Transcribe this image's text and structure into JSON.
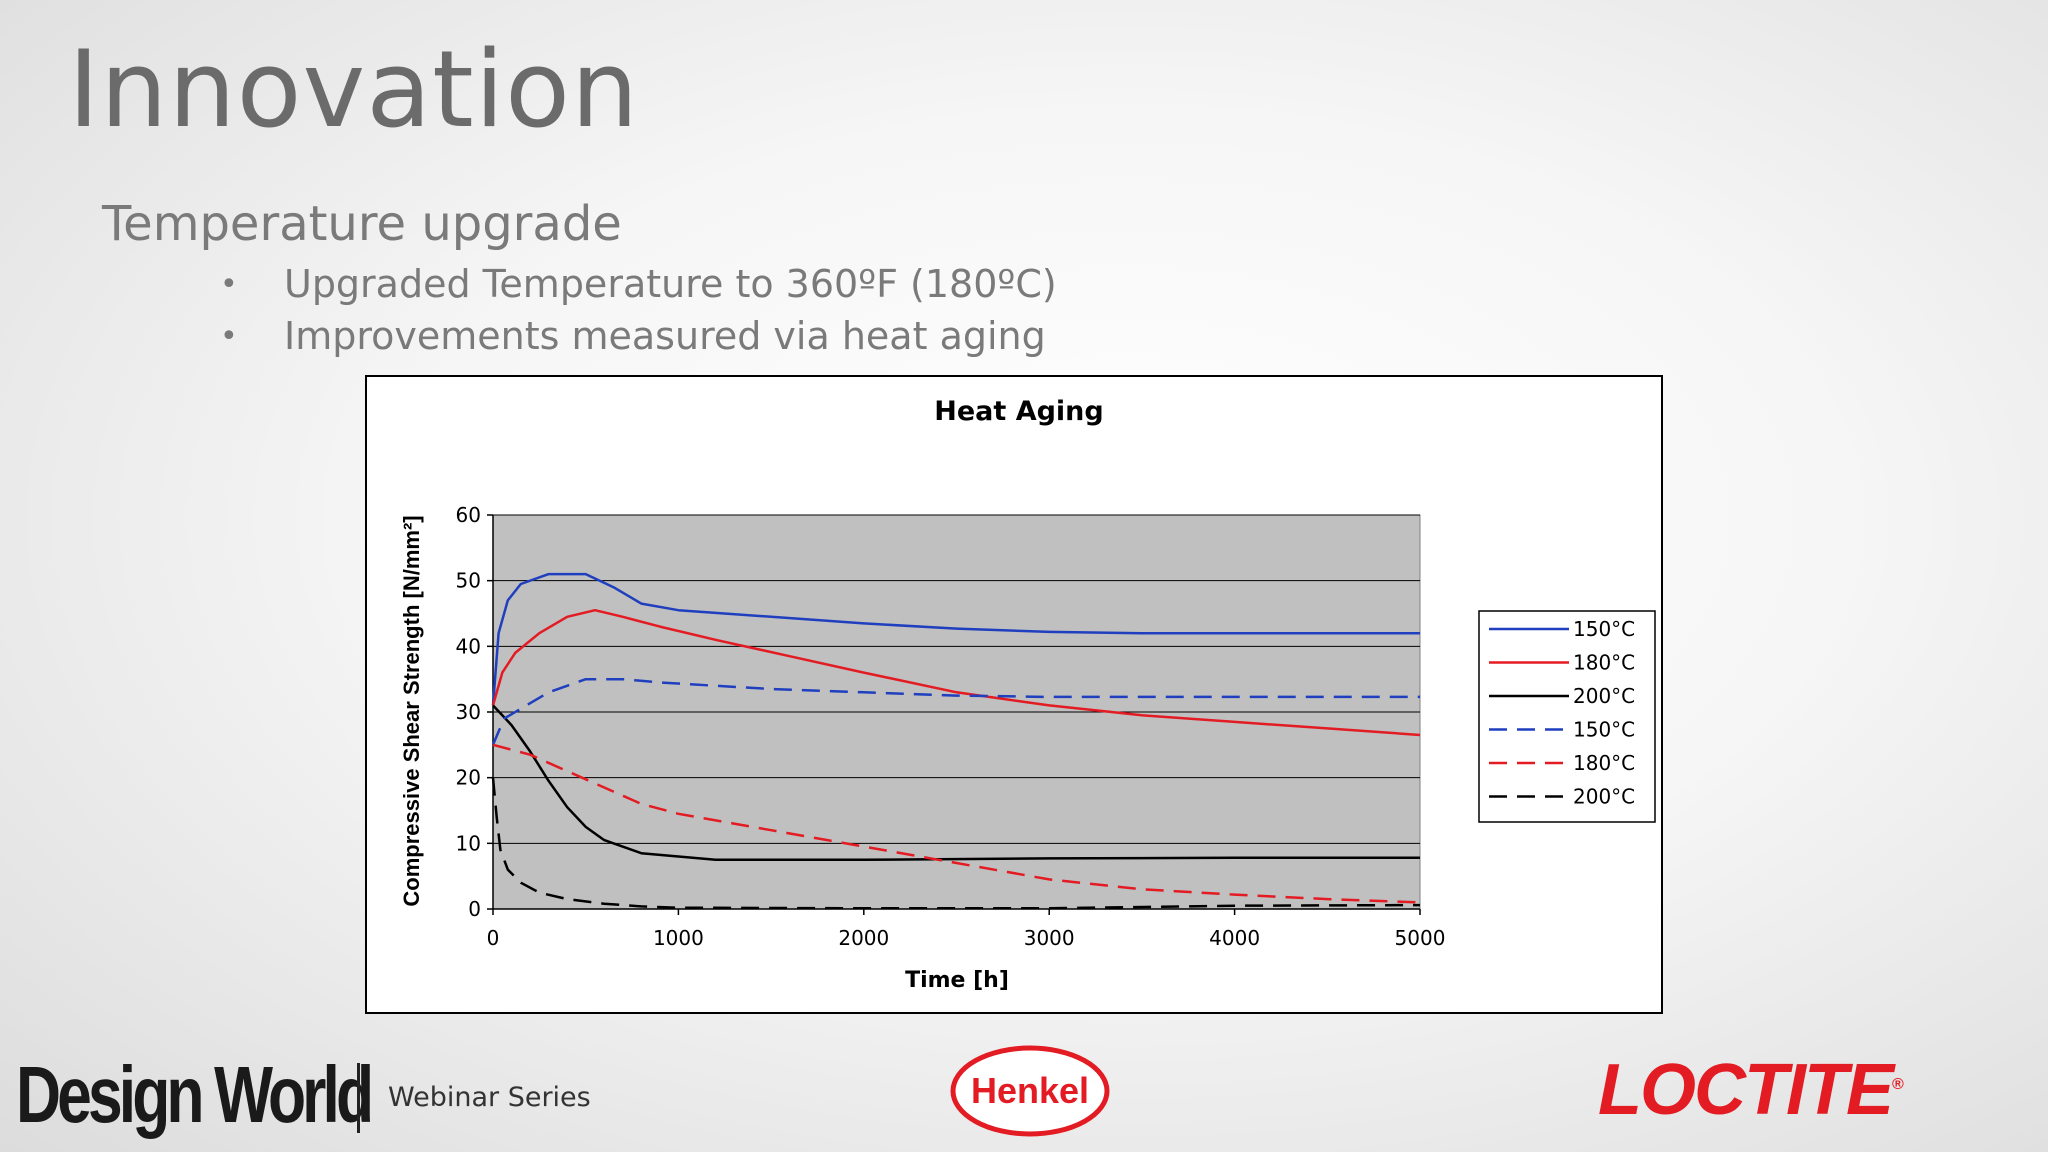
{
  "slide": {
    "title": "Innovation",
    "subtitle": "Temperature upgrade",
    "bullets": [
      "Upgraded Temperature to 360ºF (180ºC)",
      "Improvements measured via heat aging"
    ]
  },
  "footer": {
    "brand": "Design World",
    "series": "Webinar Series",
    "henkel_logo": "Henkel",
    "loctite_logo": "LOCTITE",
    "henkel_color": "#e31b23",
    "loctite_color": "#e31b23"
  },
  "chart_data": {
    "type": "line",
    "title": "Heat Aging",
    "xlabel": "Time [h]",
    "ylabel": "Compressive Shear Strength [N/mm²]",
    "xlim": [
      0,
      5000
    ],
    "ylim": [
      0,
      60
    ],
    "xticks": [
      0,
      1000,
      2000,
      3000,
      4000,
      5000
    ],
    "yticks": [
      0,
      10,
      20,
      30,
      40,
      50,
      60
    ],
    "grid": "horizontal",
    "plot_background": "#c0c0c0",
    "legend_position": "right",
    "series": [
      {
        "name": "150°C",
        "style": "solid",
        "color": "#1f3fbf",
        "points": [
          [
            0,
            31
          ],
          [
            30,
            42
          ],
          [
            80,
            47
          ],
          [
            150,
            49.5
          ],
          [
            300,
            51
          ],
          [
            500,
            51
          ],
          [
            650,
            49
          ],
          [
            800,
            46.5
          ],
          [
            1000,
            45.5
          ],
          [
            1500,
            44.5
          ],
          [
            2000,
            43.5
          ],
          [
            2500,
            42.7
          ],
          [
            3000,
            42.2
          ],
          [
            3500,
            42
          ],
          [
            4000,
            42
          ],
          [
            4500,
            42
          ],
          [
            5000,
            42
          ]
        ]
      },
      {
        "name": "180°C",
        "style": "solid",
        "color": "#e31b23",
        "points": [
          [
            0,
            31
          ],
          [
            50,
            36
          ],
          [
            120,
            39
          ],
          [
            250,
            42
          ],
          [
            400,
            44.5
          ],
          [
            550,
            45.5
          ],
          [
            700,
            44.5
          ],
          [
            900,
            43
          ],
          [
            1200,
            41
          ],
          [
            1600,
            38.5
          ],
          [
            2000,
            36
          ],
          [
            2500,
            33
          ],
          [
            3000,
            31
          ],
          [
            3500,
            29.5
          ],
          [
            4000,
            28.5
          ],
          [
            4500,
            27.5
          ],
          [
            5000,
            26.5
          ]
        ]
      },
      {
        "name": "200°C",
        "style": "solid",
        "color": "#000000",
        "points": [
          [
            0,
            31
          ],
          [
            100,
            28
          ],
          [
            200,
            24
          ],
          [
            300,
            19.5
          ],
          [
            400,
            15.5
          ],
          [
            500,
            12.5
          ],
          [
            600,
            10.5
          ],
          [
            800,
            8.5
          ],
          [
            1000,
            8
          ],
          [
            1200,
            7.5
          ],
          [
            2000,
            7.5
          ],
          [
            3000,
            7.7
          ],
          [
            4000,
            7.8
          ],
          [
            5000,
            7.8
          ]
        ]
      },
      {
        "name": "150°C",
        "style": "dashed",
        "color": "#1f3fbf",
        "points": [
          [
            0,
            25
          ],
          [
            60,
            29
          ],
          [
            150,
            30.5
          ],
          [
            300,
            33
          ],
          [
            500,
            35
          ],
          [
            700,
            35
          ],
          [
            900,
            34.5
          ],
          [
            1500,
            33.5
          ],
          [
            2000,
            33
          ],
          [
            2500,
            32.5
          ],
          [
            3000,
            32.3
          ],
          [
            4000,
            32.3
          ],
          [
            5000,
            32.3
          ]
        ]
      },
      {
        "name": "180°C",
        "style": "dashed",
        "color": "#e31b23",
        "points": [
          [
            0,
            25
          ],
          [
            200,
            23.5
          ],
          [
            400,
            21
          ],
          [
            600,
            18.5
          ],
          [
            800,
            16
          ],
          [
            1000,
            14.5
          ],
          [
            1500,
            12
          ],
          [
            2000,
            9.5
          ],
          [
            2500,
            7
          ],
          [
            3000,
            4.5
          ],
          [
            3500,
            3
          ],
          [
            4000,
            2.2
          ],
          [
            4500,
            1.5
          ],
          [
            5000,
            1
          ]
        ]
      },
      {
        "name": "200°C",
        "style": "dashed",
        "color": "#000000",
        "points": [
          [
            0,
            20
          ],
          [
            20,
            14
          ],
          [
            40,
            9
          ],
          [
            80,
            6
          ],
          [
            150,
            4
          ],
          [
            250,
            2.5
          ],
          [
            400,
            1.5
          ],
          [
            600,
            0.8
          ],
          [
            800,
            0.4
          ],
          [
            1000,
            0.2
          ],
          [
            2000,
            0.1
          ],
          [
            3000,
            0.1
          ],
          [
            4000,
            0.5
          ],
          [
            5000,
            0.6
          ]
        ]
      }
    ]
  }
}
